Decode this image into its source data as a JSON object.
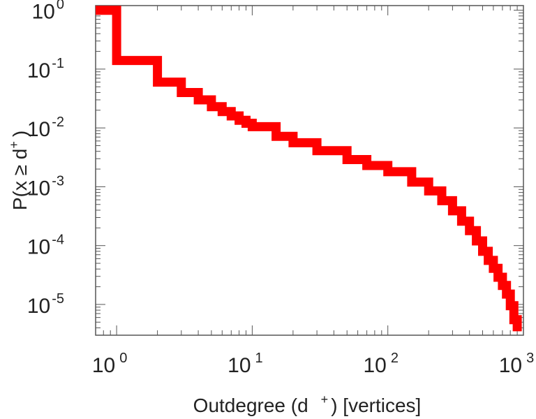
{
  "chart_data": {
    "type": "line",
    "step": true,
    "xscale": "log",
    "yscale": "log",
    "xlim": [
      0.7,
      1000
    ],
    "ylim": [
      3e-06,
      1.2
    ],
    "xlabel": {
      "main": "Outdegree (d",
      "sup": "+",
      "tail": ") [vertices]"
    },
    "ylabel": {
      "main": "P(x ≥ d",
      "sup": "+",
      "tail": ")"
    },
    "xticks": [
      {
        "value": 1,
        "base": "10",
        "exp": "0"
      },
      {
        "value": 10,
        "base": "10",
        "exp": "1"
      },
      {
        "value": 100,
        "base": "10",
        "exp": "2"
      },
      {
        "value": 1000,
        "base": "10",
        "exp": "3"
      }
    ],
    "yticks": [
      {
        "value": 1,
        "base": "10",
        "exp": "0"
      },
      {
        "value": 0.1,
        "base": "10",
        "exp": "-1"
      },
      {
        "value": 0.01,
        "base": "10",
        "exp": "-2"
      },
      {
        "value": 0.001,
        "base": "10",
        "exp": "-3"
      },
      {
        "value": 0.0001,
        "base": "10",
        "exp": "-4"
      },
      {
        "value": 1e-05,
        "base": "10",
        "exp": "-5"
      }
    ],
    "grid": false,
    "color": "#ff0000",
    "series": [
      {
        "x": [
          0.7,
          1,
          2,
          3,
          4,
          5,
          6,
          7,
          8,
          9,
          10,
          15,
          20,
          30,
          50,
          70,
          100,
          150,
          200,
          250,
          300,
          350,
          400,
          450,
          500,
          550,
          600,
          650,
          700,
          750,
          800,
          850,
          900
        ],
        "y": [
          1.0,
          0.14,
          0.06,
          0.04,
          0.03,
          0.023,
          0.019,
          0.016,
          0.0135,
          0.012,
          0.0105,
          0.0072,
          0.0056,
          0.0041,
          0.0029,
          0.0023,
          0.0018,
          0.0012,
          0.00085,
          0.00058,
          0.00039,
          0.00026,
          0.00018,
          0.00012,
          8e-05,
          5.6e-05,
          4.1e-05,
          2.9e-05,
          2.1e-05,
          1.5e-05,
          9.5e-06,
          5.5e-06,
          3.5e-06
        ]
      }
    ]
  }
}
